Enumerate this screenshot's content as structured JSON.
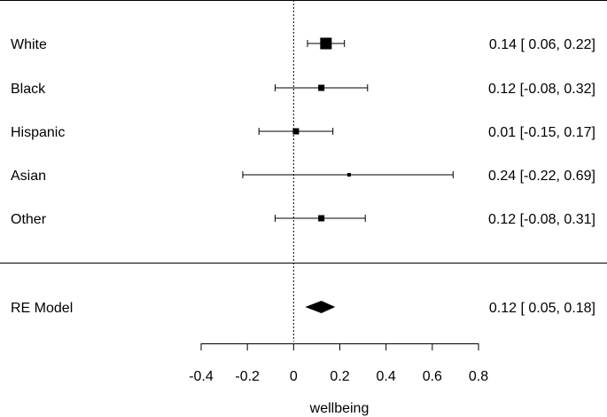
{
  "chart_data": {
    "type": "forest",
    "title": "",
    "xlabel": "wellbeing",
    "xlim": [
      -0.4,
      0.8
    ],
    "xticks": [
      -0.4,
      -0.2,
      0,
      0.2,
      0.4,
      0.6,
      0.8
    ],
    "xtick_labels": [
      "-0.4",
      "-0.2",
      "0",
      "0.2",
      "0.4",
      "0.6",
      "0.8"
    ],
    "reference_line": 0,
    "studies": [
      {
        "label": "White",
        "estimate": 0.14,
        "lower": 0.06,
        "upper": 0.22,
        "ci_text": "0.14 [ 0.06, 0.22]",
        "weight": "largest"
      },
      {
        "label": "Black",
        "estimate": 0.12,
        "lower": -0.08,
        "upper": 0.32,
        "ci_text": "0.12 [-0.08, 0.32]",
        "weight": "small"
      },
      {
        "label": "Hispanic",
        "estimate": 0.01,
        "lower": -0.15,
        "upper": 0.17,
        "ci_text": "0.01 [-0.15, 0.17]",
        "weight": "small"
      },
      {
        "label": "Asian",
        "estimate": 0.24,
        "lower": -0.22,
        "upper": 0.69,
        "ci_text": "0.24 [-0.22, 0.69]",
        "weight": "smallest"
      },
      {
        "label": "Other",
        "estimate": 0.12,
        "lower": -0.08,
        "upper": 0.31,
        "ci_text": "0.12 [-0.08, 0.31]",
        "weight": "small"
      }
    ],
    "summary": {
      "label": "RE Model",
      "estimate": 0.12,
      "lower": 0.05,
      "upper": 0.18,
      "ci_text": "0.12 [ 0.05, 0.18]"
    }
  }
}
